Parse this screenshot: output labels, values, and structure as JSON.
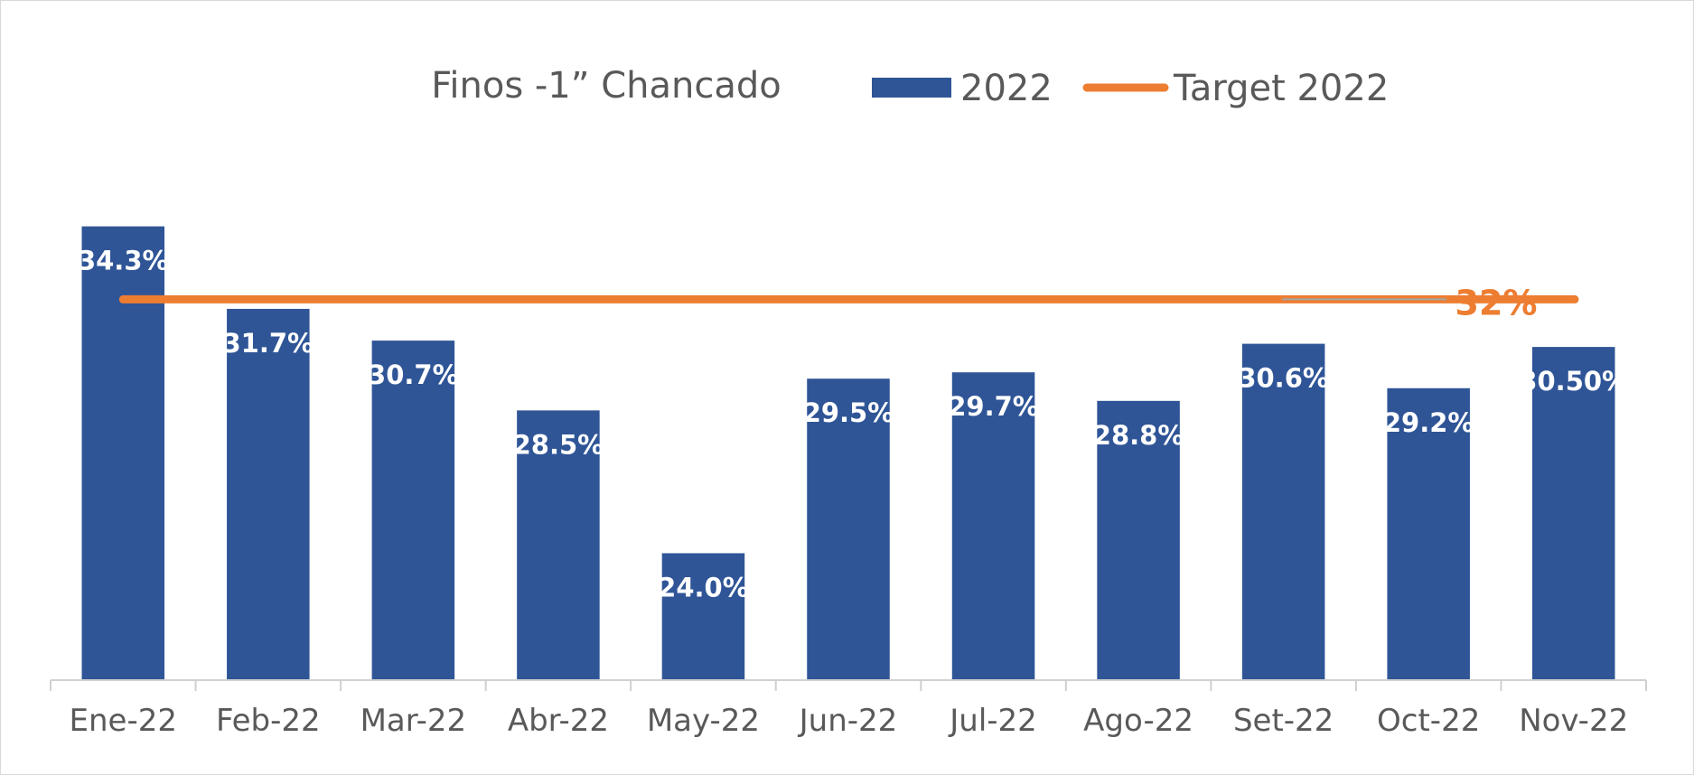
{
  "chart_data": {
    "type": "bar",
    "title": "Finos -1” Chancado",
    "categories": [
      "Ene-22",
      "Feb-22",
      "Mar-22",
      "Abr-22",
      "May-22",
      "Jun-22",
      "Jul-22",
      "Ago-22",
      "Set-22",
      "Oct-22",
      "Nov-22"
    ],
    "series": [
      {
        "name": "2022",
        "color": "#2F5597",
        "values": [
          34.3,
          31.7,
          30.7,
          28.5,
          24.0,
          29.5,
          29.7,
          28.8,
          30.6,
          29.2,
          30.5
        ],
        "labels": [
          "34.3%",
          "31.7%",
          "30.7%",
          "28.5%",
          "24.0%",
          "29.5%",
          "29.7%",
          "28.8%",
          "30.6%",
          "29.2%",
          "30.50%"
        ]
      }
    ],
    "target": {
      "name": "Target 2022",
      "color": "#ED7D31",
      "value": 32,
      "label": "32%"
    },
    "ylim": [
      20.0,
      35.0
    ],
    "grid": false,
    "legend_position": "top"
  }
}
